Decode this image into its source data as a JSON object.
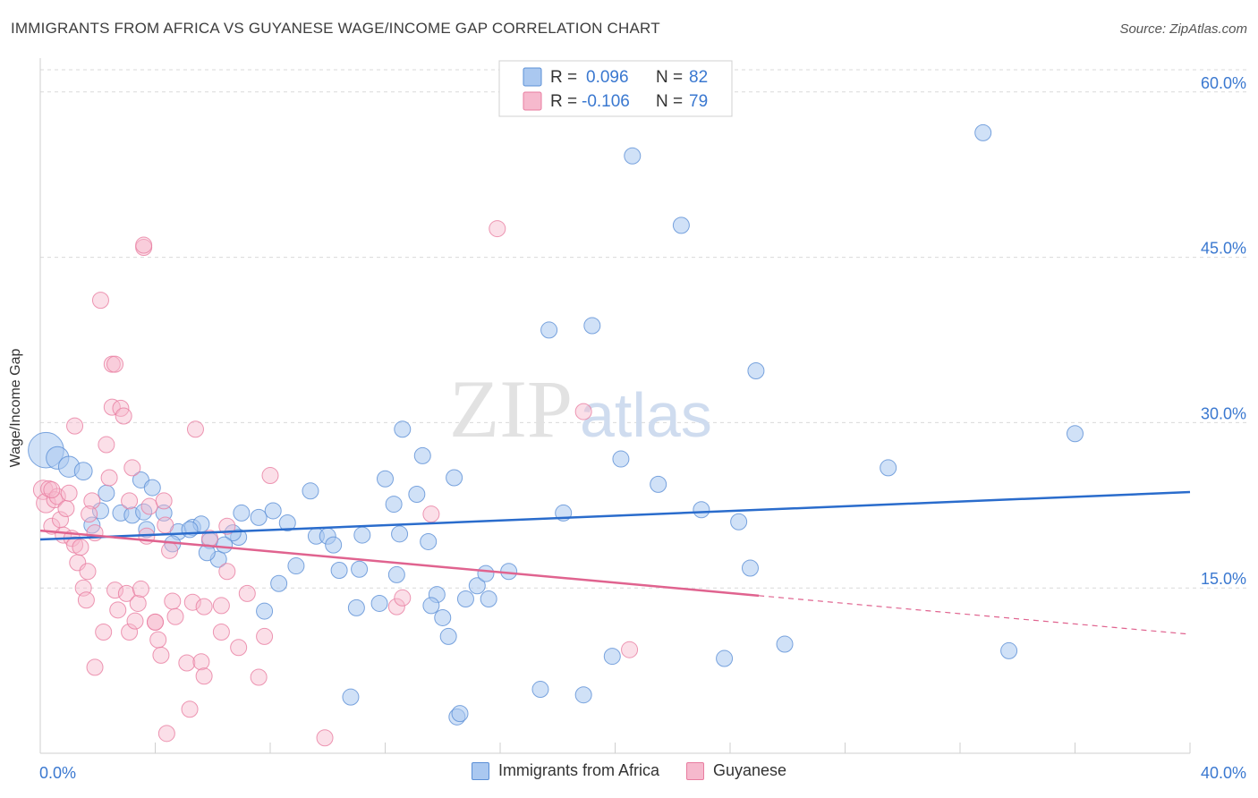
{
  "title": "IMMIGRANTS FROM AFRICA VS GUYANESE WAGE/INCOME GAP CORRELATION CHART",
  "source": "Source: ZipAtlas.com",
  "watermark": {
    "zip": "ZIP",
    "atlas": "atlas"
  },
  "legend_box": {
    "rows": [
      {
        "r_label": "R =",
        "r_value": "0.096",
        "n_label": "N =",
        "n_value": "82"
      },
      {
        "r_label": "R =",
        "r_value": "-0.106",
        "n_label": "N =",
        "n_value": "79"
      }
    ]
  },
  "colors": {
    "blue": "#5b8fd6",
    "blue_fill": "#aac8f0",
    "blue_line": "#2a6ccc",
    "pink": "#e87da0",
    "pink_fill": "#f6b9cd",
    "pink_line": "#e0638f",
    "axis_text": "#3a78d0",
    "grid": "#d9d9d9"
  },
  "chart_data": {
    "type": "scatter",
    "title": "IMMIGRANTS FROM AFRICA VS GUYANESE WAGE/INCOME GAP CORRELATION CHART",
    "xlabel": "",
    "ylabel": "Wage/Income Gap",
    "xlim": [
      0,
      40
    ],
    "ylim": [
      0,
      62.5
    ],
    "x_tick_labels": [
      "0.0%",
      "40.0%"
    ],
    "y_tick_labels": [
      "15.0%",
      "30.0%",
      "45.0%",
      "60.0%"
    ],
    "y_ticks": [
      15,
      30,
      45,
      60
    ],
    "grid": "horizontal dashed",
    "legend_position": "top-center",
    "series": [
      {
        "name": "Immigrants from Africa",
        "color": "blue",
        "trend": {
          "x0": 0,
          "y0": 19.4,
          "x1": 40,
          "y1": 23.7
        },
        "points": [
          [
            0.2,
            27.5,
            2.2
          ],
          [
            0.6,
            26.8,
            1.4
          ],
          [
            1.0,
            26.0,
            1.3
          ],
          [
            1.5,
            25.6,
            1.1
          ],
          [
            2.3,
            23.6,
            1
          ],
          [
            2.1,
            22.0,
            1
          ],
          [
            2.8,
            21.8,
            1
          ],
          [
            3.2,
            21.6,
            1
          ],
          [
            3.5,
            24.8,
            1
          ],
          [
            3.9,
            24.1,
            1
          ],
          [
            1.8,
            20.7,
            1
          ],
          [
            3.7,
            20.3,
            1
          ],
          [
            4.3,
            21.8,
            1
          ],
          [
            4.8,
            20.1,
            1
          ],
          [
            5.3,
            20.5,
            1
          ],
          [
            5.6,
            20.8,
            1
          ],
          [
            4.6,
            19.0,
            1
          ],
          [
            5.9,
            19.3,
            1
          ],
          [
            6.2,
            17.6,
            1
          ],
          [
            5.8,
            18.2,
            1
          ],
          [
            6.9,
            19.6,
            1
          ],
          [
            6.7,
            20.0,
            1
          ],
          [
            7.0,
            21.8,
            1
          ],
          [
            7.6,
            21.4,
            1
          ],
          [
            8.1,
            22.0,
            1
          ],
          [
            8.6,
            20.9,
            1
          ],
          [
            9.4,
            23.8,
            1
          ],
          [
            9.6,
            19.7,
            1
          ],
          [
            10.0,
            19.7,
            1
          ],
          [
            10.2,
            18.9,
            1
          ],
          [
            11.2,
            19.8,
            1
          ],
          [
            8.9,
            17.0,
            1
          ],
          [
            10.4,
            16.6,
            1
          ],
          [
            11.0,
            13.2,
            1
          ],
          [
            11.1,
            16.7,
            1
          ],
          [
            8.3,
            15.4,
            1
          ],
          [
            7.8,
            12.9,
            1
          ],
          [
            11.8,
            13.6,
            1
          ],
          [
            12.0,
            24.9,
            1
          ],
          [
            12.3,
            22.6,
            1
          ],
          [
            12.5,
            19.9,
            1
          ],
          [
            12.4,
            16.2,
            1
          ],
          [
            12.6,
            29.4,
            1
          ],
          [
            13.1,
            23.5,
            1
          ],
          [
            13.3,
            27.0,
            1
          ],
          [
            13.5,
            19.2,
            1
          ],
          [
            13.8,
            14.4,
            1
          ],
          [
            13.6,
            13.4,
            1
          ],
          [
            14.0,
            12.3,
            1
          ],
          [
            14.4,
            25.0,
            1
          ],
          [
            14.2,
            10.6,
            1
          ],
          [
            14.8,
            14.0,
            1
          ],
          [
            15.2,
            15.2,
            1
          ],
          [
            15.5,
            16.3,
            1
          ],
          [
            15.6,
            14.0,
            1
          ],
          [
            16.3,
            16.5,
            1
          ],
          [
            17.7,
            38.4,
            1
          ],
          [
            17.4,
            5.8,
            1
          ],
          [
            18.2,
            21.8,
            1
          ],
          [
            19.2,
            38.8,
            1
          ],
          [
            18.9,
            5.3,
            1
          ],
          [
            19.9,
            8.8,
            1
          ],
          [
            20.2,
            26.7,
            1
          ],
          [
            20.6,
            54.2,
            1
          ],
          [
            21.5,
            24.4,
            1
          ],
          [
            22.3,
            47.9,
            1
          ],
          [
            23.0,
            22.1,
            1
          ],
          [
            23.8,
            8.6,
            1
          ],
          [
            24.3,
            21.0,
            1
          ],
          [
            24.7,
            16.8,
            1
          ],
          [
            24.9,
            34.7,
            1
          ],
          [
            25.9,
            9.9,
            1
          ],
          [
            29.5,
            25.9,
            1
          ],
          [
            32.8,
            56.3,
            1
          ],
          [
            33.7,
            9.3,
            1
          ],
          [
            36.0,
            29.0,
            1
          ],
          [
            10.8,
            5.1,
            1
          ],
          [
            14.5,
            3.3,
            1
          ],
          [
            14.6,
            3.6,
            1
          ],
          [
            5.2,
            20.3,
            1
          ],
          [
            3.6,
            21.9,
            1
          ],
          [
            6.4,
            18.9,
            1
          ]
        ]
      },
      {
        "name": "Guyanese",
        "color": "pink",
        "trend": {
          "x0": 0,
          "y0": 20.2,
          "x1": 25,
          "y1": 14.3,
          "dash_to_x": 40,
          "dash_to_y": 10.8
        },
        "points": [
          [
            0.1,
            23.9,
            1.2
          ],
          [
            0.2,
            22.7,
            1.2
          ],
          [
            0.3,
            24.0,
            1
          ],
          [
            0.4,
            20.6,
            1
          ],
          [
            0.5,
            23.0,
            1
          ],
          [
            0.6,
            23.3,
            1
          ],
          [
            0.7,
            21.2,
            1
          ],
          [
            0.8,
            19.8,
            1
          ],
          [
            0.9,
            22.2,
            1
          ],
          [
            1.0,
            23.6,
            1
          ],
          [
            1.1,
            19.5,
            1
          ],
          [
            1.2,
            18.9,
            1
          ],
          [
            1.3,
            17.3,
            1
          ],
          [
            1.4,
            18.7,
            1
          ],
          [
            1.5,
            15.0,
            1
          ],
          [
            1.6,
            13.9,
            1
          ],
          [
            1.65,
            16.5,
            1
          ],
          [
            1.8,
            22.9,
            1
          ],
          [
            1.7,
            21.7,
            1
          ],
          [
            1.9,
            20.0,
            1
          ],
          [
            1.2,
            29.7,
            1
          ],
          [
            2.1,
            41.1,
            1
          ],
          [
            2.2,
            11.0,
            1
          ],
          [
            1.9,
            7.8,
            1
          ],
          [
            2.3,
            28.0,
            1
          ],
          [
            2.4,
            25.0,
            1
          ],
          [
            2.5,
            31.4,
            1
          ],
          [
            2.5,
            35.3,
            1
          ],
          [
            2.6,
            35.3,
            1
          ],
          [
            2.6,
            14.8,
            1
          ],
          [
            2.7,
            13.0,
            1
          ],
          [
            2.8,
            31.3,
            1
          ],
          [
            2.9,
            30.6,
            1
          ],
          [
            3.0,
            14.5,
            1
          ],
          [
            3.1,
            22.9,
            1
          ],
          [
            3.1,
            11.0,
            1
          ],
          [
            3.2,
            25.9,
            1
          ],
          [
            3.3,
            12.0,
            1
          ],
          [
            3.4,
            13.6,
            1
          ],
          [
            3.5,
            14.9,
            1
          ],
          [
            3.6,
            45.9,
            1
          ],
          [
            3.6,
            46.1,
            1
          ],
          [
            3.7,
            19.7,
            1
          ],
          [
            3.8,
            22.4,
            1
          ],
          [
            4.0,
            11.9,
            1
          ],
          [
            4.0,
            11.9,
            1
          ],
          [
            4.1,
            10.3,
            1
          ],
          [
            4.2,
            8.9,
            1
          ],
          [
            4.3,
            22.9,
            1
          ],
          [
            4.35,
            20.7,
            1
          ],
          [
            4.5,
            18.4,
            1
          ],
          [
            4.6,
            13.8,
            1
          ],
          [
            4.7,
            12.4,
            1
          ],
          [
            5.1,
            8.2,
            1
          ],
          [
            5.2,
            4.0,
            1
          ],
          [
            5.3,
            13.7,
            1
          ],
          [
            5.4,
            29.4,
            1
          ],
          [
            5.6,
            8.3,
            1
          ],
          [
            5.7,
            7.0,
            1
          ],
          [
            5.7,
            13.3,
            1
          ],
          [
            5.9,
            19.5,
            1
          ],
          [
            6.3,
            11.0,
            1
          ],
          [
            6.3,
            13.4,
            1
          ],
          [
            6.5,
            16.5,
            1
          ],
          [
            6.5,
            20.6,
            1
          ],
          [
            6.9,
            9.6,
            1
          ],
          [
            7.2,
            14.5,
            1
          ],
          [
            7.6,
            6.9,
            1
          ],
          [
            7.8,
            10.6,
            1
          ],
          [
            8.0,
            25.2,
            1
          ],
          [
            4.4,
            1.8,
            1
          ],
          [
            9.9,
            1.4,
            1
          ],
          [
            12.4,
            13.3,
            1
          ],
          [
            12.6,
            14.1,
            1
          ],
          [
            13.6,
            21.7,
            1
          ],
          [
            15.9,
            47.6,
            1
          ],
          [
            18.9,
            31.0,
            1
          ],
          [
            20.5,
            9.4,
            1
          ],
          [
            0.4,
            23.9,
            1
          ]
        ]
      }
    ]
  },
  "bottom_legend": [
    {
      "label": "Immigrants from Africa"
    },
    {
      "label": "Guyanese"
    }
  ]
}
